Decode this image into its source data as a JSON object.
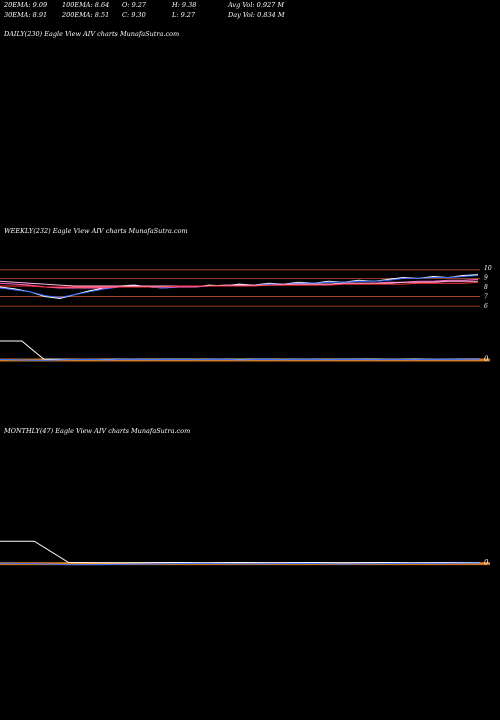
{
  "header": {
    "ema20": "20EMA: 9.09",
    "ema100": "100EMA: 8.64",
    "open": "O: 9.27",
    "high": "H: 9.38",
    "avg_vol": "Avg Vol: 0.927  M",
    "ema30": "30EMA: 8.91",
    "ema200": "200EMA: 8.51",
    "close": "C: 9.30",
    "low": "L: 9.27",
    "day_vol": "Day Vol: 0.834  M"
  },
  "panels": {
    "daily_label": "DAILY(230) Eagle   View  AIV charts MunafaSutra.com",
    "weekly_label": "WEEKLY(232) Eagle   View  AIV charts MunafaSutra.com",
    "monthly_label": "MONTHLY(47) Eagle   View  AIV charts MunafaSutra.com"
  },
  "chart_data": [
    {
      "type": "line",
      "panel": "weekly",
      "y_ticks": [
        "10",
        "9",
        "8",
        "7",
        "6"
      ],
      "series": [
        {
          "color": "#ffffff",
          "values": [
            8.0,
            7.8,
            7.5,
            7.0,
            6.8,
            7.2,
            7.6,
            7.9,
            8.1,
            8.2,
            8.0,
            7.9,
            8.1,
            8.0,
            8.2,
            8.1,
            8.3,
            8.2,
            8.4,
            8.3,
            8.5,
            8.4,
            8.6,
            8.5,
            8.7,
            8.6,
            8.8,
            9.0,
            8.9,
            9.1,
            9.0,
            9.2,
            9.3
          ]
        },
        {
          "color": "#3b6fff",
          "values": [
            7.9,
            7.7,
            7.5,
            7.1,
            6.9,
            7.2,
            7.5,
            7.8,
            8.0,
            8.1,
            8.0,
            7.9,
            8.0,
            8.0,
            8.1,
            8.1,
            8.2,
            8.2,
            8.3,
            8.3,
            8.4,
            8.4,
            8.5,
            8.5,
            8.6,
            8.6,
            8.7,
            8.9,
            8.9,
            9.0,
            9.0,
            9.1,
            9.2
          ]
        },
        {
          "color": "#ff66cc",
          "values": [
            8.4,
            8.3,
            8.2,
            8.0,
            7.9,
            7.9,
            7.9,
            7.9,
            8.0,
            8.0,
            8.0,
            8.0,
            8.0,
            8.0,
            8.1,
            8.1,
            8.1,
            8.2,
            8.2,
            8.2,
            8.3,
            8.3,
            8.3,
            8.4,
            8.4,
            8.4,
            8.5,
            8.5,
            8.6,
            8.6,
            8.7,
            8.7,
            8.8
          ]
        },
        {
          "color": "#ffb3e6",
          "values": [
            8.6,
            8.5,
            8.4,
            8.3,
            8.2,
            8.1,
            8.1,
            8.1,
            8.1,
            8.1,
            8.1,
            8.1,
            8.1,
            8.1,
            8.1,
            8.2,
            8.2,
            8.2,
            8.2,
            8.3,
            8.3,
            8.3,
            8.3,
            8.4,
            8.4,
            8.4,
            8.4,
            8.5,
            8.5,
            8.5,
            8.6,
            8.6,
            8.6
          ]
        },
        {
          "color": "#ff3333",
          "values": [
            8.1,
            8.1,
            8.1,
            8.0,
            8.0,
            8.0,
            8.0,
            8.0,
            8.0,
            8.0,
            8.0,
            8.0,
            8.1,
            8.1,
            8.1,
            8.1,
            8.1,
            8.1,
            8.2,
            8.2,
            8.2,
            8.2,
            8.2,
            8.3,
            8.3,
            8.3,
            8.3,
            8.3,
            8.4,
            8.4,
            8.4,
            8.4,
            8.5
          ]
        }
      ],
      "h_levels": [
        {
          "value": 9.8,
          "color": "#c0502a"
        },
        {
          "value": 8.9,
          "color": "#c0502a"
        },
        {
          "value": 7.0,
          "color": "#c0502a"
        },
        {
          "value": 6.0,
          "color": "#c0502a"
        }
      ]
    },
    {
      "type": "line",
      "panel": "weekly-indicator",
      "y_tick": "0",
      "series": [
        {
          "color": "#ffffff",
          "values": [
            0.95,
            0.95,
            0.05,
            0.04,
            0.03,
            0.04,
            0.05,
            0.04,
            0.05,
            0.04,
            0.05,
            0.04,
            0.05,
            0.04,
            0.05,
            0.04,
            0.05,
            0.05,
            0.04,
            0.05,
            0.04,
            0.05,
            0.06
          ]
        },
        {
          "color": "#3b6fff",
          "values": [
            0.03,
            0.0,
            -0.02,
            0.02,
            0.03,
            0.01,
            0.04,
            0.02,
            0.03,
            0.02,
            0.04,
            0.01,
            0.03,
            0.02,
            0.04,
            0.02,
            0.03,
            0.02,
            0.03,
            0.02,
            0.04,
            0.03,
            0.05
          ]
        }
      ]
    },
    {
      "type": "line",
      "panel": "monthly-indicator",
      "y_tick": "0",
      "series": [
        {
          "color": "#ffffff",
          "values": [
            0.95,
            0.95,
            0.05,
            0.04,
            0.04,
            0.05,
            0.04,
            0.05,
            0.04,
            0.05,
            0.04,
            0.05,
            0.04,
            0.05,
            0.05
          ]
        },
        {
          "color": "#3b6fff",
          "values": [
            0.02,
            0.0,
            -0.05,
            -0.04,
            -0.02,
            0.0,
            0.01,
            -0.01,
            0.0,
            0.01,
            -0.02,
            0.0,
            0.01,
            0.02,
            0.03
          ]
        }
      ]
    }
  ]
}
